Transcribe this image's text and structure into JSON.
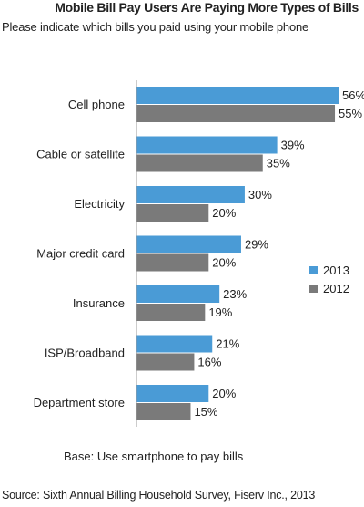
{
  "chart_data": {
    "type": "bar",
    "orientation": "horizontal",
    "title": "Mobile Bill Pay Users Are Paying More Types of Bills",
    "subtitle": "Please indicate which bills you paid using your mobile phone",
    "categories": [
      "Cell phone",
      "Cable or satellite",
      "Electricity",
      "Major credit card",
      "Insurance",
      "ISP/Broadband",
      "Department store"
    ],
    "series": [
      {
        "name": "2013",
        "color": "#4a9bd6",
        "values": [
          56,
          39,
          30,
          29,
          23,
          21,
          20
        ]
      },
      {
        "name": "2012",
        "color": "#7a7a7a",
        "values": [
          55,
          35,
          20,
          20,
          19,
          16,
          15
        ]
      }
    ],
    "value_suffix": "%",
    "xlim": [
      0,
      60
    ],
    "grid": false,
    "legend_position": "right",
    "note": "Base: Use smartphone to pay bills",
    "source": "Source: Sixth Annual Billing Household Survey, Fiserv Inc., 2013"
  }
}
